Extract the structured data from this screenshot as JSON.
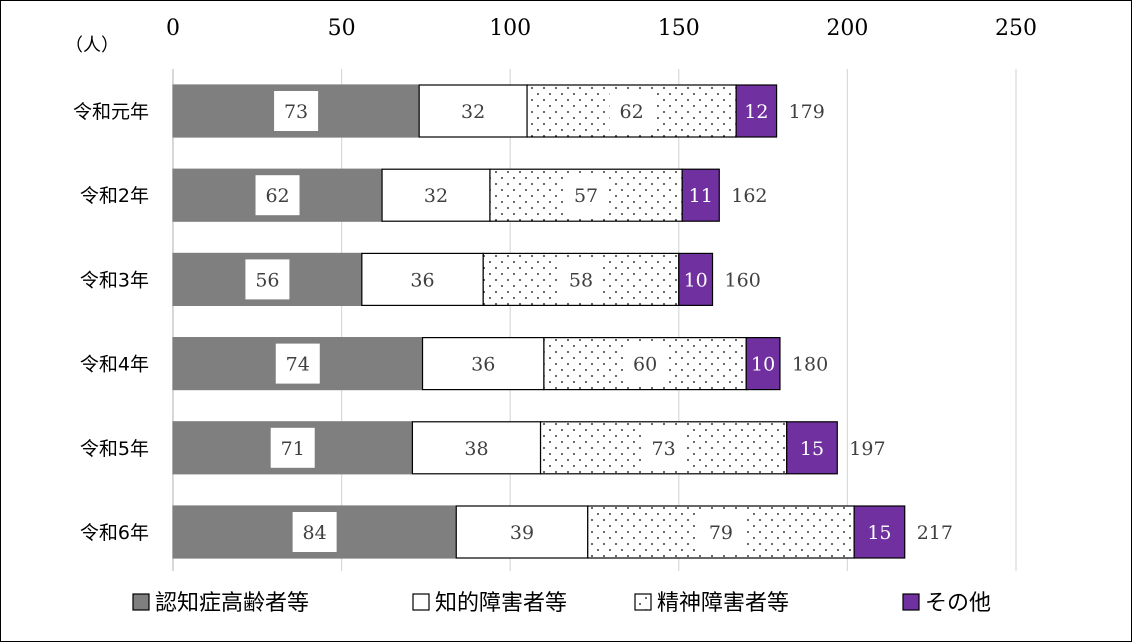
{
  "chart_data": {
    "type": "bar",
    "orientation": "horizontal",
    "stacked": true,
    "unit_label": "（人）",
    "categories": [
      "令和元年",
      "令和2年",
      "令和3年",
      "令和4年",
      "令和5年",
      "令和6年"
    ],
    "series": [
      {
        "name": "認知症高齢者等",
        "values": [
          73,
          62,
          56,
          74,
          71,
          84
        ],
        "color": "#7f7f7f",
        "pattern": "solid"
      },
      {
        "name": "知的障害者等",
        "values": [
          32,
          32,
          36,
          36,
          38,
          39
        ],
        "color": "#ffffff",
        "pattern": "solid"
      },
      {
        "name": "精神障害者等",
        "values": [
          62,
          57,
          58,
          60,
          73,
          79
        ],
        "color": "#ffffff",
        "pattern": "dots"
      },
      {
        "name": "その他",
        "values": [
          12,
          11,
          10,
          10,
          15,
          15
        ],
        "color": "#7030a0",
        "pattern": "solid"
      }
    ],
    "totals": [
      179,
      162,
      160,
      180,
      197,
      217
    ],
    "x_ticks": [
      "0",
      "50",
      "100",
      "150",
      "200",
      "250"
    ],
    "xlim": [
      0,
      250
    ],
    "axis_position": "top",
    "grid": true,
    "legend_position": "bottom"
  }
}
